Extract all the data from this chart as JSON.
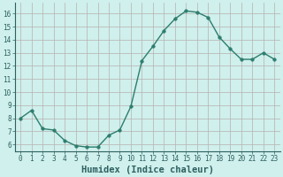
{
  "x": [
    0,
    1,
    2,
    3,
    4,
    5,
    6,
    7,
    8,
    9,
    10,
    11,
    12,
    13,
    14,
    15,
    16,
    17,
    18,
    19,
    20,
    21,
    22,
    23
  ],
  "y": [
    8.0,
    8.6,
    7.2,
    7.1,
    6.3,
    5.9,
    5.8,
    5.8,
    6.7,
    7.1,
    8.9,
    12.4,
    13.5,
    14.7,
    15.6,
    16.2,
    16.1,
    15.7,
    14.2,
    13.3,
    12.5,
    12.5,
    13.0,
    12.5
  ],
  "line_color": "#2d7d6e",
  "marker_color": "#2d7d6e",
  "bg_color": "#cff0ec",
  "grid_color_major": "#b8b0b0",
  "grid_color_minor": "#d8d0d0",
  "xlabel": "Humidex (Indice chaleur)",
  "xlabel_color": "#2d6060",
  "ylim": [
    5.5,
    16.8
  ],
  "yticks": [
    6,
    7,
    8,
    9,
    10,
    11,
    12,
    13,
    14,
    15,
    16
  ],
  "xtick_labels": [
    "0",
    "1",
    "2",
    "3",
    "4",
    "5",
    "6",
    "7",
    "8",
    "9",
    "10",
    "11",
    "12",
    "13",
    "14",
    "15",
    "16",
    "17",
    "18",
    "19",
    "20",
    "21",
    "22",
    "23"
  ],
  "tick_label_color": "#000000",
  "axis_color": "#2d6060",
  "tick_font_size": 5.5,
  "xlabel_fontsize": 7.5,
  "line_width": 1.0,
  "marker_size": 2.5
}
